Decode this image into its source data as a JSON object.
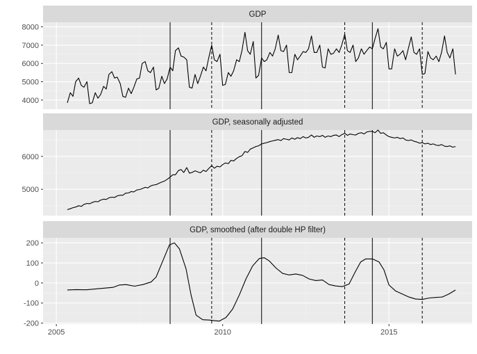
{
  "chart_data": {
    "type": "line",
    "x_axis": {
      "range": [
        2004.6,
        2017.5
      ],
      "major_ticks": [
        2005,
        2010,
        2015
      ],
      "minor_ticks": [
        2007.5,
        2012.5
      ],
      "tick_labels": [
        "2005",
        "2010",
        "2015"
      ]
    },
    "vertical_lines": {
      "solid": [
        2008.42,
        2011.17,
        2014.5
      ],
      "dashed": [
        2009.67,
        2013.67,
        2016.0
      ]
    },
    "panels": [
      {
        "title": "GDP",
        "ylim": [
          3500,
          8250
        ],
        "y_ticks": [
          4000,
          5000,
          6000,
          7000,
          8000
        ],
        "y_tick_labels": [
          "4000",
          "5000",
          "6000",
          "7000",
          "8000"
        ],
        "y_minor": [
          4500,
          5500,
          6500,
          7500
        ],
        "series": [
          {
            "x": [
              2005.33,
              2005.42,
              2005.5,
              2005.58,
              2005.67,
              2005.75,
              2005.83,
              2005.92,
              2006.0,
              2006.08,
              2006.17,
              2006.25,
              2006.33,
              2006.42,
              2006.5,
              2006.58,
              2006.67,
              2006.75,
              2006.83,
              2006.92,
              2007.0,
              2007.08,
              2007.17,
              2007.25,
              2007.33,
              2007.42,
              2007.5,
              2007.58,
              2007.67,
              2007.75,
              2007.83,
              2007.92,
              2008.0,
              2008.08,
              2008.17,
              2008.25,
              2008.33,
              2008.42,
              2008.5,
              2008.58,
              2008.67,
              2008.75,
              2008.83,
              2008.92,
              2009.0,
              2009.08,
              2009.17,
              2009.25,
              2009.33,
              2009.42,
              2009.5,
              2009.58,
              2009.67,
              2009.75,
              2009.83,
              2009.92,
              2010.0,
              2010.08,
              2010.17,
              2010.25,
              2010.33,
              2010.42,
              2010.5,
              2010.58,
              2010.67,
              2010.75,
              2010.83,
              2010.92,
              2011.0,
              2011.08,
              2011.17,
              2011.25,
              2011.33,
              2011.42,
              2011.5,
              2011.58,
              2011.67,
              2011.75,
              2011.83,
              2011.92,
              2012.0,
              2012.08,
              2012.17,
              2012.25,
              2012.33,
              2012.42,
              2012.5,
              2012.58,
              2012.67,
              2012.75,
              2012.83,
              2012.92,
              2013.0,
              2013.08,
              2013.17,
              2013.25,
              2013.33,
              2013.42,
              2013.5,
              2013.58,
              2013.67,
              2013.75,
              2013.83,
              2013.92,
              2014.0,
              2014.08,
              2014.17,
              2014.25,
              2014.33,
              2014.42,
              2014.5,
              2014.58,
              2014.67,
              2014.75,
              2014.83,
              2014.92,
              2015.0,
              2015.08,
              2015.17,
              2015.25,
              2015.33,
              2015.42,
              2015.5,
              2015.58,
              2015.67,
              2015.75,
              2015.83,
              2015.92,
              2016.0,
              2016.08,
              2016.17,
              2016.25,
              2016.33,
              2016.42,
              2016.5,
              2016.58,
              2016.67,
              2016.75,
              2016.83,
              2016.92,
              2017.0
            ],
            "y": [
              3850,
              4400,
              4200,
              5000,
              5200,
              4800,
              4700,
              5000,
              3800,
              3850,
              4400,
              4100,
              4300,
              4750,
              4600,
              5400,
              5550,
              5200,
              5250,
              4900,
              4200,
              4150,
              4650,
              4350,
              4700,
              5150,
              5200,
              6000,
              6100,
              5600,
              5500,
              5800,
              4550,
              4650,
              5300,
              4900,
              5150,
              5800,
              5600,
              6700,
              6850,
              6400,
              6350,
              6200,
              4700,
              4650,
              5400,
              4900,
              5300,
              5800,
              5600,
              6300,
              7000,
              6200,
              6100,
              6500,
              4800,
              4850,
              5500,
              5300,
              5600,
              6200,
              6100,
              6700,
              7700,
              6700,
              6500,
              7200,
              5200,
              5350,
              6300,
              6100,
              6200,
              6600,
              6400,
              6800,
              7550,
              6700,
              6650,
              7000,
              5500,
              5500,
              6500,
              6200,
              6400,
              6650,
              6600,
              6800,
              7500,
              6600,
              6600,
              7000,
              5800,
              5750,
              6800,
              6500,
              6550,
              6800,
              6600,
              7000,
              7600,
              6700,
              6600,
              7000,
              6100,
              6300,
              6800,
              6500,
              6700,
              6900,
              6800,
              7350,
              7900,
              6900,
              6800,
              7150,
              5700,
              5700,
              6800,
              6400,
              6500,
              6700,
              6200,
              6800,
              7450,
              6600,
              6500,
              6800,
              5400,
              5450,
              6650,
              6300,
              6200,
              6400,
              6100,
              6600,
              7500,
              6600,
              6300,
              6800,
              5400
            ]
          }
        ]
      },
      {
        "title": "GDP, seasonally adjusted",
        "ylim": [
          4200,
          6800
        ],
        "y_ticks": [
          5000,
          6000
        ],
        "y_tick_labels": [
          "5000",
          "6000"
        ],
        "y_minor": [
          4500,
          5500,
          6500
        ],
        "series": [
          {
            "x": [
              2005.33,
              2005.42,
              2005.5,
              2005.58,
              2005.67,
              2005.75,
              2005.83,
              2005.92,
              2006.0,
              2006.08,
              2006.17,
              2006.25,
              2006.33,
              2006.42,
              2006.5,
              2006.58,
              2006.67,
              2006.75,
              2006.83,
              2006.92,
              2007.0,
              2007.08,
              2007.17,
              2007.25,
              2007.33,
              2007.42,
              2007.5,
              2007.58,
              2007.67,
              2007.75,
              2007.83,
              2007.92,
              2008.0,
              2008.08,
              2008.17,
              2008.25,
              2008.33,
              2008.42,
              2008.5,
              2008.58,
              2008.67,
              2008.75,
              2008.83,
              2008.92,
              2009.0,
              2009.08,
              2009.17,
              2009.25,
              2009.33,
              2009.42,
              2009.5,
              2009.58,
              2009.67,
              2009.75,
              2009.83,
              2009.92,
              2010.0,
              2010.08,
              2010.17,
              2010.25,
              2010.33,
              2010.42,
              2010.5,
              2010.58,
              2010.67,
              2010.75,
              2010.83,
              2010.92,
              2011.0,
              2011.08,
              2011.17,
              2011.25,
              2011.33,
              2011.42,
              2011.5,
              2011.58,
              2011.67,
              2011.75,
              2011.83,
              2011.92,
              2012.0,
              2012.08,
              2012.17,
              2012.25,
              2012.33,
              2012.42,
              2012.5,
              2012.58,
              2012.67,
              2012.75,
              2012.83,
              2012.92,
              2013.0,
              2013.08,
              2013.17,
              2013.25,
              2013.33,
              2013.42,
              2013.5,
              2013.58,
              2013.67,
              2013.75,
              2013.83,
              2013.92,
              2014.0,
              2014.08,
              2014.17,
              2014.25,
              2014.33,
              2014.42,
              2014.5,
              2014.58,
              2014.67,
              2014.75,
              2014.83,
              2014.92,
              2015.0,
              2015.08,
              2015.17,
              2015.25,
              2015.33,
              2015.42,
              2015.5,
              2015.58,
              2015.67,
              2015.75,
              2015.83,
              2015.92,
              2016.0,
              2016.08,
              2016.17,
              2016.25,
              2016.33,
              2016.42,
              2016.5,
              2016.58,
              2016.67,
              2016.75,
              2016.83,
              2016.92,
              2017.0
            ],
            "y": [
              4380,
              4410,
              4440,
              4460,
              4500,
              4480,
              4540,
              4570,
              4560,
              4600,
              4630,
              4620,
              4670,
              4700,
              4690,
              4740,
              4760,
              4750,
              4800,
              4820,
              4820,
              4880,
              4890,
              4930,
              4920,
              4980,
              4990,
              5020,
              5060,
              5040,
              5100,
              5130,
              5140,
              5180,
              5220,
              5250,
              5300,
              5370,
              5440,
              5440,
              5570,
              5600,
              5510,
              5660,
              5490,
              5510,
              5560,
              5530,
              5500,
              5580,
              5540,
              5630,
              5720,
              5640,
              5700,
              5680,
              5750,
              5800,
              5780,
              5880,
              5860,
              5940,
              5990,
              6020,
              6150,
              6120,
              6220,
              6260,
              6300,
              6320,
              6380,
              6400,
              6420,
              6450,
              6470,
              6490,
              6510,
              6480,
              6540,
              6520,
              6500,
              6560,
              6520,
              6570,
              6540,
              6600,
              6560,
              6580,
              6650,
              6580,
              6620,
              6600,
              6640,
              6580,
              6620,
              6600,
              6640,
              6650,
              6600,
              6660,
              6700,
              6640,
              6680,
              6660,
              6650,
              6700,
              6720,
              6680,
              6740,
              6760,
              6760,
              6720,
              6800,
              6700,
              6720,
              6650,
              6600,
              6580,
              6560,
              6580,
              6540,
              6560,
              6500,
              6480,
              6500,
              6460,
              6440,
              6400,
              6420,
              6380,
              6400,
              6360,
              6380,
              6340,
              6330,
              6360,
              6310,
              6300,
              6320,
              6280,
              6300
            ]
          }
        ]
      },
      {
        "title": "GDP, smoothed (after double HP filter)",
        "ylim": [
          -205,
          225
        ],
        "y_ticks": [
          -200,
          -100,
          0,
          100,
          200
        ],
        "y_tick_labels": [
          "-200",
          "-100",
          "0",
          "100",
          "200"
        ],
        "y_minor": [
          -150,
          -50,
          50,
          150
        ],
        "series": [
          {
            "x": [
              2005.33,
              2005.6,
              2005.9,
              2006.3,
              2006.7,
              2006.9,
              2007.1,
              2007.35,
              2007.6,
              2007.85,
              2008.0,
              2008.2,
              2008.4,
              2008.55,
              2008.7,
              2008.9,
              2009.05,
              2009.2,
              2009.4,
              2009.6,
              2009.75,
              2009.9,
              2010.1,
              2010.3,
              2010.5,
              2010.7,
              2010.9,
              2011.1,
              2011.25,
              2011.4,
              2011.6,
              2011.8,
              2012.0,
              2012.2,
              2012.4,
              2012.6,
              2012.8,
              2013.0,
              2013.2,
              2013.4,
              2013.6,
              2013.8,
              2014.0,
              2014.15,
              2014.3,
              2014.5,
              2014.7,
              2014.85,
              2015.0,
              2015.2,
              2015.4,
              2015.6,
              2015.8,
              2016.0,
              2016.2,
              2016.4,
              2016.6,
              2016.8,
              2017.0
            ],
            "y": [
              -35,
              -33,
              -34,
              -28,
              -22,
              -10,
              -8,
              -16,
              -8,
              5,
              30,
              110,
              190,
              200,
              170,
              70,
              -60,
              -160,
              -183,
              -185,
              -188,
              -190,
              -172,
              -130,
              -60,
              20,
              85,
              122,
              126,
              110,
              75,
              48,
              40,
              45,
              38,
              20,
              12,
              15,
              -8,
              -15,
              -18,
              -5,
              60,
              105,
              120,
              120,
              105,
              65,
              -10,
              -40,
              -55,
              -70,
              -80,
              -82,
              -75,
              -72,
              -70,
              -55,
              -35
            ]
          }
        ]
      }
    ]
  }
}
